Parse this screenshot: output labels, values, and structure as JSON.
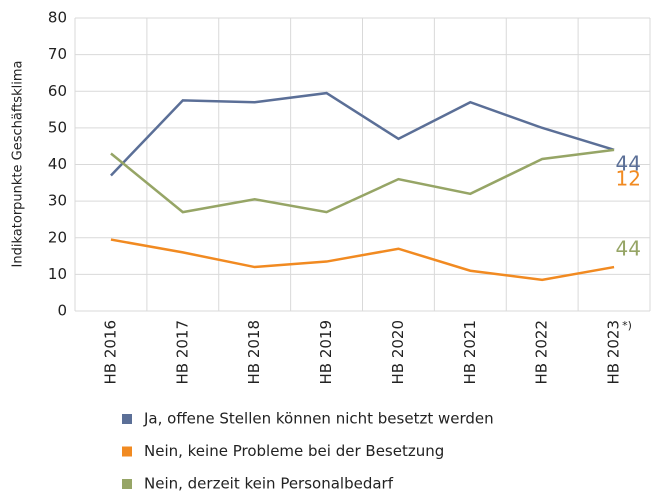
{
  "chart_data": {
    "type": "line",
    "y_label": "Indikatorpunkte Geschäftsklima",
    "categories": [
      "HB 2016",
      "HB 2017",
      "HB 2018",
      "HB 2019",
      "HB 2020",
      "HB 2021",
      "HB 2022",
      "HB 2023"
    ],
    "annotation": "*)",
    "series": [
      {
        "name": "Ja, offene Stellen können nicht besetzt werden",
        "color": "#5b6f97",
        "values": [
          37,
          57.5,
          57,
          59.5,
          47,
          57,
          50,
          44
        ]
      },
      {
        "name": "Nein, keine Probleme bei der Besetzung",
        "color": "#f18a21",
        "values": [
          19.5,
          16,
          12,
          13.5,
          17,
          11,
          8.5,
          12
        ]
      },
      {
        "name": "Nein, derzeit kein Personalbedarf",
        "color": "#96a566",
        "values": [
          43,
          27,
          30.5,
          27,
          36,
          32,
          41.5,
          44
        ]
      }
    ],
    "ylim": [
      0,
      80
    ],
    "yticks": [
      0,
      10,
      20,
      30,
      40,
      50,
      60,
      70,
      80
    ],
    "grid": true
  }
}
